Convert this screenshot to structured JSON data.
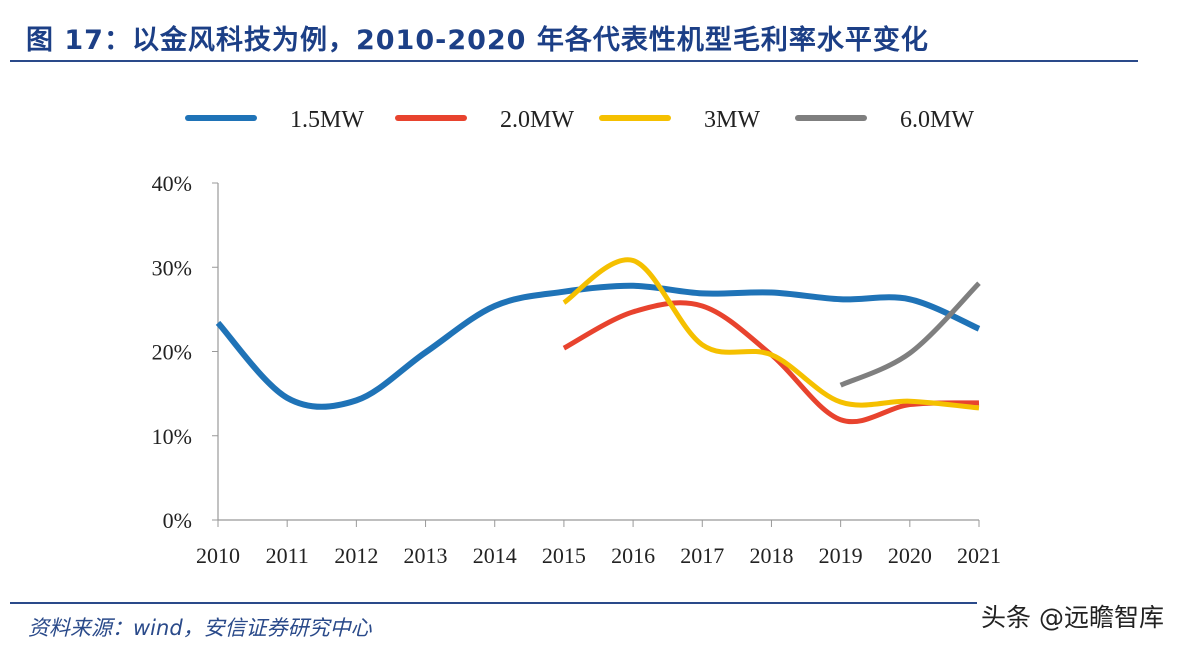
{
  "title": "图 17：以金风科技为例，2010-2020 年各代表性机型毛利率水平变化",
  "source": "资料来源：wind，安信证券研究中心",
  "watermark": "头条 @远瞻智库",
  "chart_data": {
    "type": "line",
    "title": "",
    "xlabel": "",
    "ylabel": "",
    "categories": [
      "2010",
      "2011",
      "2012",
      "2013",
      "2014",
      "2015",
      "2016",
      "2017",
      "2018",
      "2019",
      "2020",
      "2021"
    ],
    "ylim": [
      0,
      40
    ],
    "yticks": [
      "0%",
      "10%",
      "20%",
      "30%",
      "40%"
    ],
    "grid": false,
    "legend": "top",
    "series": [
      {
        "name": "1.5MW",
        "color": "#1f73b7",
        "values": [
          23.4,
          14.5,
          14.2,
          19.9,
          25.4,
          27.1,
          27.8,
          26.9,
          27.0,
          26.2,
          26.2,
          22.7
        ]
      },
      {
        "name": "2.0MW",
        "color": "#e8432e",
        "values": [
          null,
          null,
          null,
          null,
          null,
          20.4,
          24.7,
          25.4,
          19.6,
          11.9,
          13.7,
          13.9
        ]
      },
      {
        "name": "3MW",
        "color": "#f5c000",
        "values": [
          null,
          null,
          null,
          null,
          null,
          25.8,
          30.8,
          20.8,
          19.6,
          14.0,
          14.1,
          13.3
        ]
      },
      {
        "name": "6.0MW",
        "color": "#7f7f7f",
        "values": [
          null,
          null,
          null,
          null,
          null,
          null,
          null,
          null,
          null,
          16.0,
          19.8,
          28.1
        ]
      }
    ]
  }
}
